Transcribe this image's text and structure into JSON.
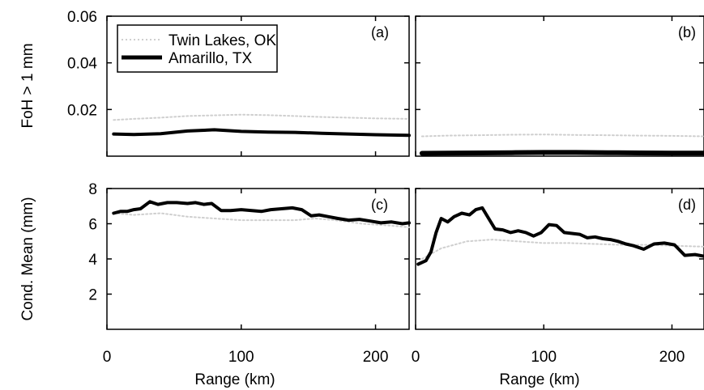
{
  "chart_data": [
    {
      "panel": "(a)",
      "type": "line",
      "ylabel": "FoH > 1 mm",
      "xlabel": "",
      "xlim": [
        0,
        225
      ],
      "ylim": [
        0,
        0.06
      ],
      "yticks": [
        0.02,
        0.04,
        0.06
      ],
      "ytick_labels": [
        "0.02",
        "0.04",
        "0.06"
      ],
      "grid": false,
      "legend": {
        "placement": "top-left",
        "entries": [
          {
            "label": "Twin Lakes, OK",
            "color": "#cfcfcf"
          },
          {
            "label": "Amarillo, TX",
            "color": "#000000"
          }
        ]
      },
      "series": [
        {
          "name": "Twin Lakes, OK",
          "color": "#cfcfcf",
          "style": "dotted",
          "x": [
            5,
            20,
            40,
            60,
            80,
            100,
            120,
            140,
            160,
            180,
            200,
            225
          ],
          "y": [
            0.0155,
            0.016,
            0.0165,
            0.0172,
            0.0175,
            0.0178,
            0.0176,
            0.0172,
            0.0168,
            0.0165,
            0.0162,
            0.016
          ]
        },
        {
          "name": "Amarillo, TX",
          "color": "#000000",
          "style": "solid",
          "x": [
            5,
            20,
            40,
            60,
            80,
            100,
            120,
            140,
            160,
            180,
            200,
            225
          ],
          "y": [
            0.0095,
            0.0093,
            0.0096,
            0.0108,
            0.0113,
            0.0106,
            0.0103,
            0.0102,
            0.0098,
            0.0095,
            0.0092,
            0.0089
          ]
        }
      ]
    },
    {
      "panel": "(b)",
      "type": "line",
      "xlabel": "",
      "ylabel": "",
      "xlim": [
        0,
        225
      ],
      "ylim": [
        0,
        0.06
      ],
      "grid": false,
      "series": [
        {
          "name": "Twin Lakes, OK",
          "color": "#cfcfcf",
          "style": "dotted",
          "x": [
            5,
            25,
            50,
            75,
            100,
            125,
            150,
            175,
            200,
            225
          ],
          "y": [
            0.0085,
            0.0088,
            0.009,
            0.0092,
            0.0093,
            0.0091,
            0.009,
            0.0088,
            0.0087,
            0.0085
          ]
        },
        {
          "name": "Amarillo, TX",
          "color": "#000000",
          "style": "solid",
          "x": [
            5,
            25,
            50,
            75,
            100,
            125,
            150,
            175,
            200,
            225
          ],
          "y": [
            0.0012,
            0.0013,
            0.0014,
            0.0015,
            0.0016,
            0.0016,
            0.0015,
            0.0014,
            0.0013,
            0.0013
          ]
        }
      ]
    },
    {
      "panel": "(c)",
      "type": "line",
      "ylabel": "Cond. Mean (mm)",
      "xlabel": "Range (km)",
      "xlim": [
        0,
        225
      ],
      "ylim": [
        0,
        8
      ],
      "xticks": [
        0,
        100,
        200
      ],
      "xtick_labels": [
        "0",
        "100",
        "200"
      ],
      "yticks": [
        2,
        4,
        6,
        8
      ],
      "ytick_labels": [
        "2",
        "4",
        "6",
        "8"
      ],
      "grid": false,
      "series": [
        {
          "name": "Twin Lakes, OK",
          "color": "#cfcfcf",
          "style": "dotted",
          "x": [
            5,
            20,
            40,
            60,
            80,
            100,
            120,
            140,
            155,
            170,
            190,
            210,
            225
          ],
          "y": [
            6.6,
            6.5,
            6.6,
            6.4,
            6.3,
            6.2,
            6.2,
            6.2,
            6.3,
            6.2,
            6.0,
            5.9,
            5.8
          ]
        },
        {
          "name": "Amarillo, TX",
          "color": "#000000",
          "style": "solid",
          "x": [
            5,
            10,
            15,
            20,
            25,
            32,
            38,
            45,
            52,
            60,
            66,
            72,
            78,
            85,
            92,
            100,
            108,
            115,
            122,
            130,
            138,
            145,
            152,
            158,
            165,
            172,
            180,
            188,
            196,
            204,
            212,
            220,
            225
          ],
          "y": [
            6.6,
            6.7,
            6.7,
            6.8,
            6.85,
            7.25,
            7.1,
            7.2,
            7.2,
            7.15,
            7.2,
            7.1,
            7.15,
            6.75,
            6.75,
            6.8,
            6.75,
            6.7,
            6.8,
            6.85,
            6.9,
            6.8,
            6.45,
            6.5,
            6.4,
            6.3,
            6.2,
            6.25,
            6.15,
            6.05,
            6.1,
            6.0,
            6.05
          ]
        }
      ]
    },
    {
      "panel": "(d)",
      "type": "line",
      "xlabel": "Range (km)",
      "ylabel": "",
      "xlim": [
        0,
        225
      ],
      "ylim": [
        0,
        8
      ],
      "xticks": [
        0,
        100,
        200
      ],
      "xtick_labels": [
        "0",
        "100",
        "200"
      ],
      "grid": false,
      "series": [
        {
          "name": "Twin Lakes, OK",
          "color": "#cfcfcf",
          "style": "dotted",
          "x": [
            5,
            20,
            40,
            60,
            80,
            100,
            120,
            140,
            160,
            180,
            200,
            225
          ],
          "y": [
            4.0,
            4.6,
            5.0,
            5.1,
            5.0,
            4.9,
            4.9,
            4.85,
            4.8,
            4.8,
            4.75,
            4.7
          ]
        },
        {
          "name": "Amarillo, TX",
          "color": "#000000",
          "style": "solid",
          "x": [
            2,
            8,
            12,
            16,
            20,
            25,
            30,
            36,
            42,
            47,
            52,
            57,
            62,
            68,
            74,
            80,
            86,
            92,
            98,
            104,
            110,
            116,
            122,
            128,
            134,
            140,
            146,
            152,
            158,
            164,
            170,
            178,
            186,
            194,
            202,
            210,
            218,
            225
          ],
          "y": [
            3.7,
            3.9,
            4.4,
            5.5,
            6.3,
            6.1,
            6.4,
            6.6,
            6.5,
            6.8,
            6.9,
            6.3,
            5.7,
            5.65,
            5.5,
            5.6,
            5.5,
            5.3,
            5.5,
            5.95,
            5.9,
            5.5,
            5.45,
            5.4,
            5.2,
            5.25,
            5.15,
            5.1,
            5.0,
            4.85,
            4.75,
            4.55,
            4.85,
            4.9,
            4.8,
            4.2,
            4.25,
            4.15
          ]
        }
      ]
    }
  ]
}
